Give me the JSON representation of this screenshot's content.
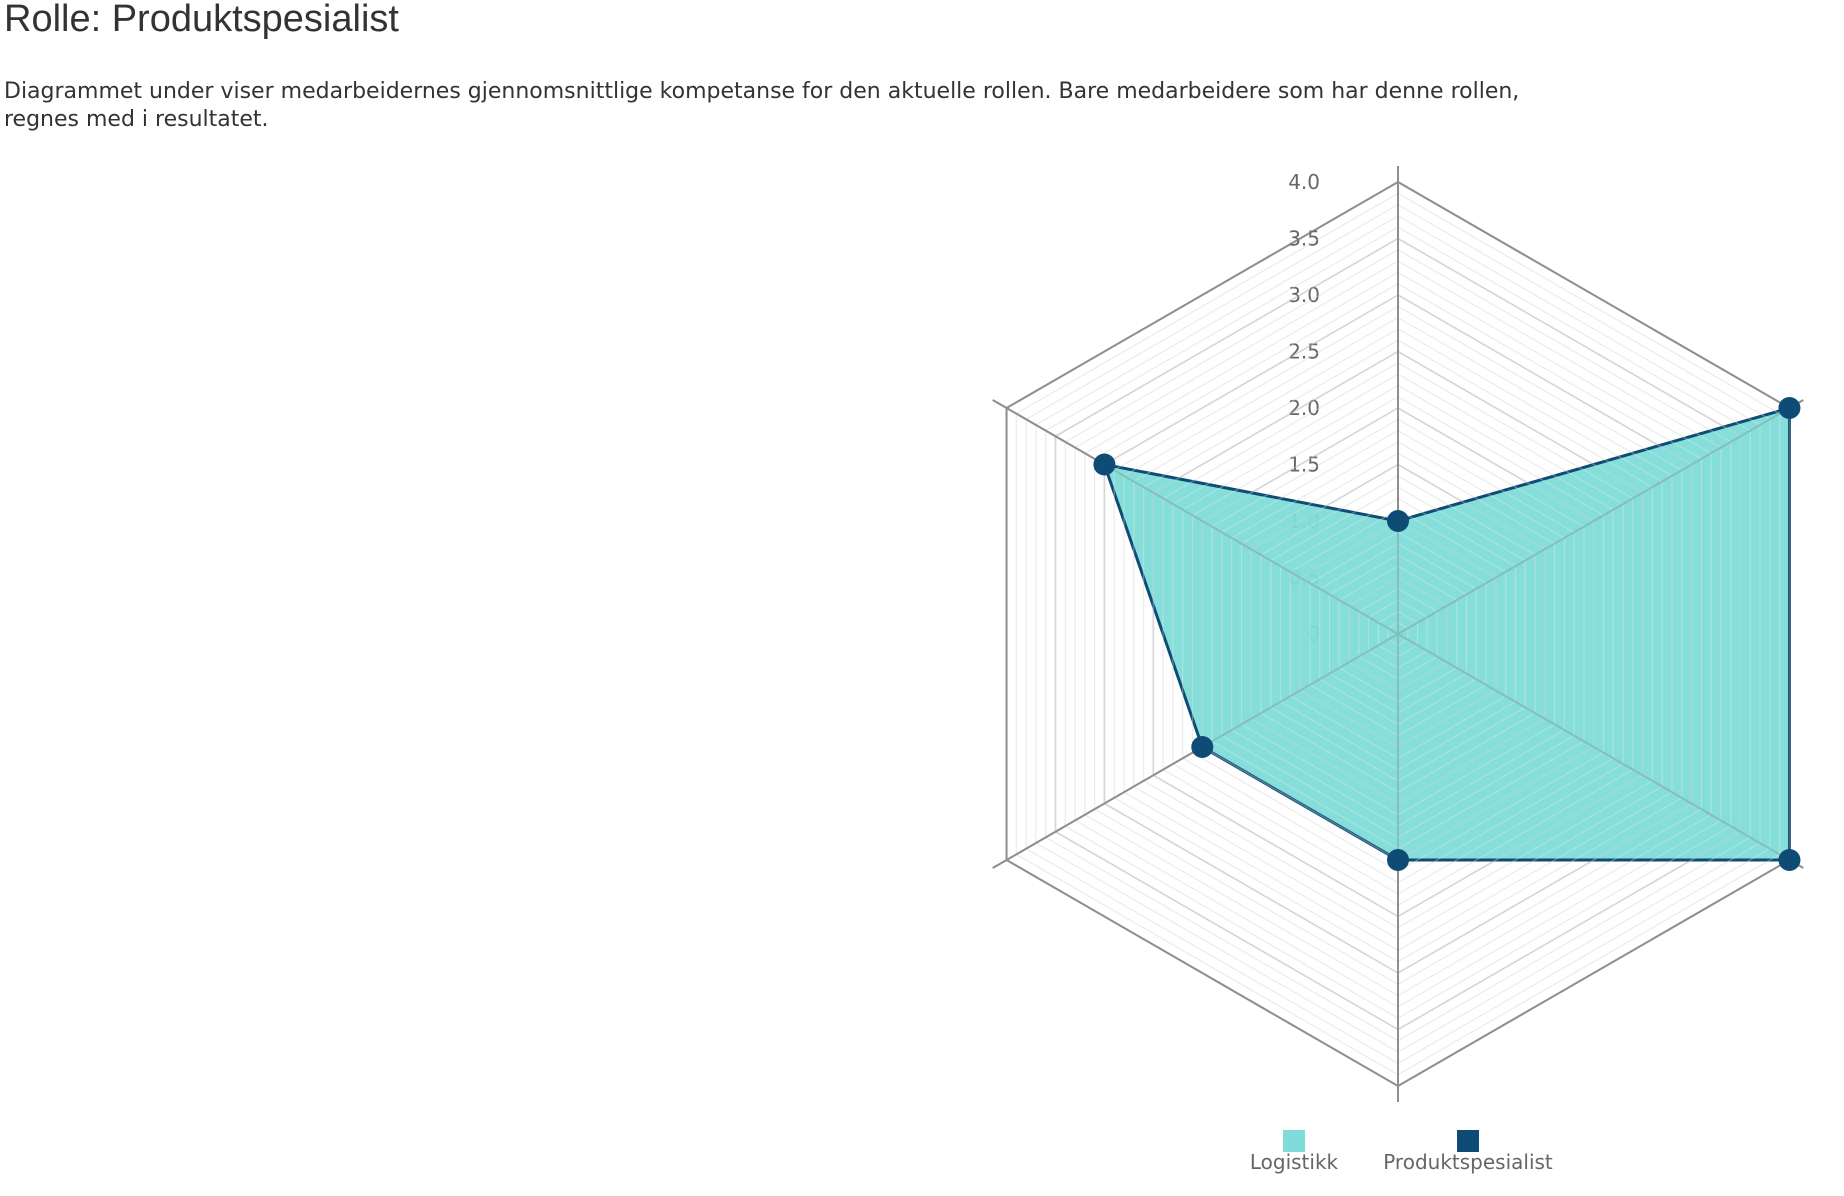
{
  "page": {
    "title": "Rolle: Produktspesialist",
    "description": "Diagrammet under viser medarbeidernes gjennomsnittlige kompetanse for den aktuelle rollen. Bare medarbeidere som har denne rollen, regnes med i resultatet."
  },
  "chart_data": {
    "type": "radar",
    "axes_count": 6,
    "r_range": [
      0,
      4.0
    ],
    "r_step": 0.5,
    "tick_labels": [
      "0",
      "0.5",
      "1.0",
      "1.5",
      "2.0",
      "2.5",
      "3.0",
      "3.5",
      "4.0"
    ],
    "grid": true,
    "legend_position": "bottom",
    "series": [
      {
        "name": "Logistikk",
        "color": "#7fdcd8",
        "values": []
      },
      {
        "name": "Produktspesialist",
        "color": "#0f4c75",
        "fill_color": "#7fdcd8",
        "values": [
          1.0,
          4.0,
          4.0,
          2.0,
          2.0,
          3.0
        ]
      }
    ]
  }
}
